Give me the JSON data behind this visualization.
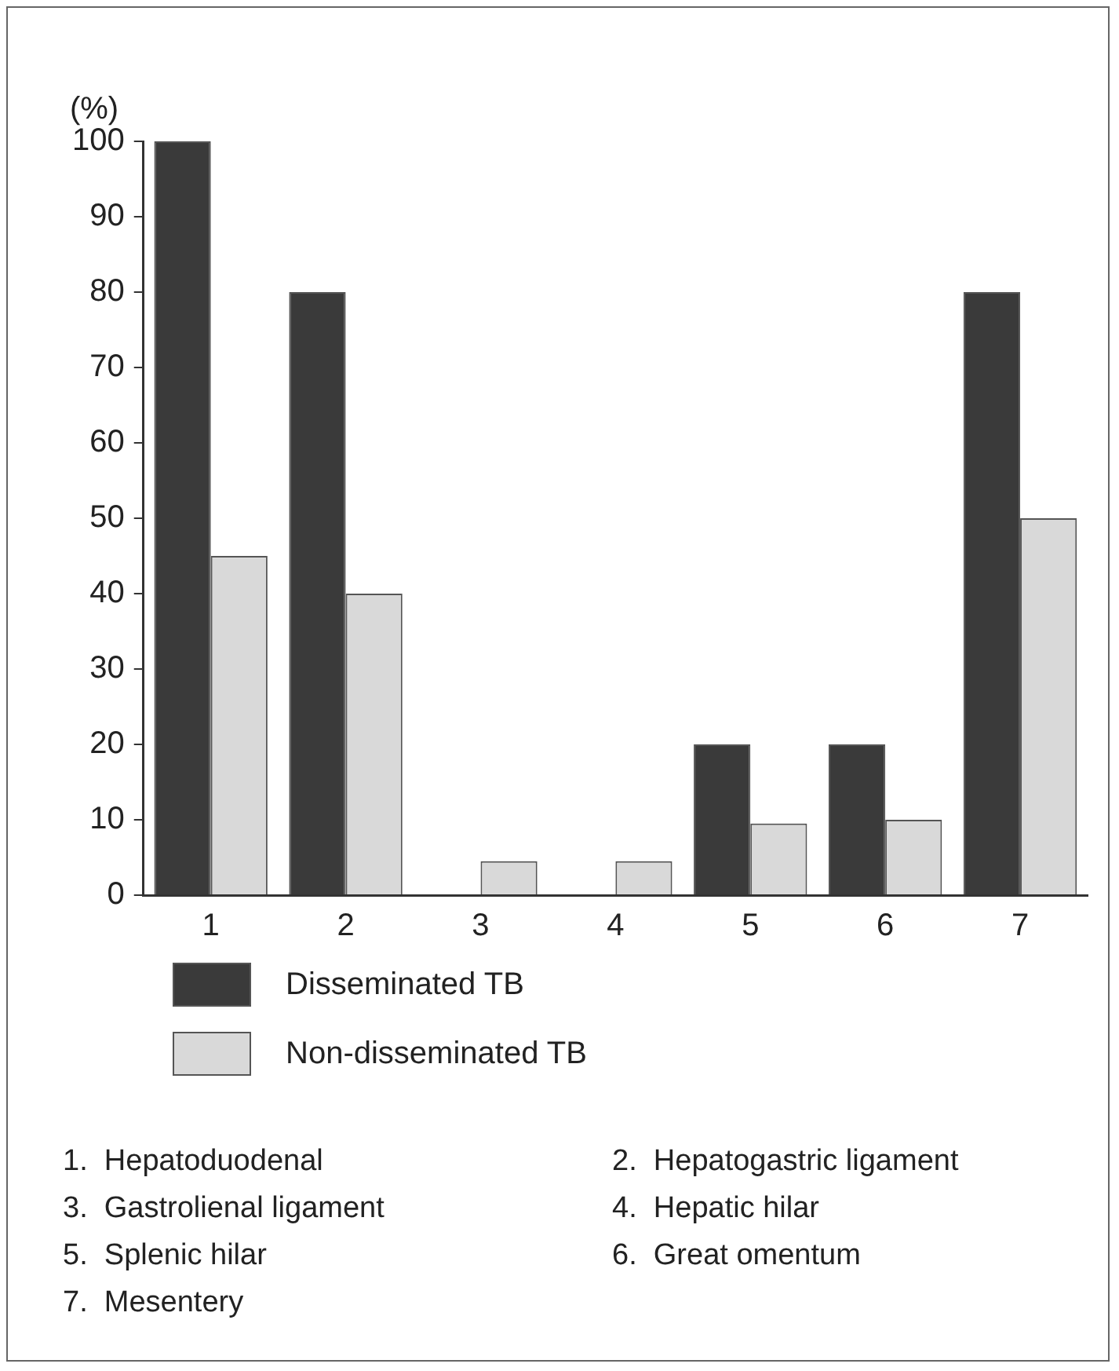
{
  "chart_data": {
    "type": "bar",
    "ylabel": "(%)",
    "categories": [
      "1",
      "2",
      "3",
      "4",
      "5",
      "6",
      "7"
    ],
    "series": [
      {
        "name": "Disseminated TB",
        "color": "#3a3a3a",
        "values": [
          100,
          80,
          0,
          0,
          20,
          20,
          80
        ]
      },
      {
        "name": "Non-disseminated TB",
        "color": "#d9d9d9",
        "values": [
          45,
          40,
          4.5,
          4.5,
          9.5,
          10,
          50
        ]
      }
    ],
    "ylim": [
      0,
      100
    ],
    "yticks": [
      0,
      10,
      20,
      30,
      40,
      50,
      60,
      70,
      80,
      90,
      100
    ],
    "grid": false,
    "legend": "bottom",
    "annotations": [
      "1.  Hepatoduodenal",
      "2.  Hepatogastric ligament",
      "3.  Gastrolienal ligament",
      "4.  Hepatic hilar",
      "5.  Splenic hilar",
      "6.  Great omentum",
      "7.  Mesentery"
    ]
  }
}
